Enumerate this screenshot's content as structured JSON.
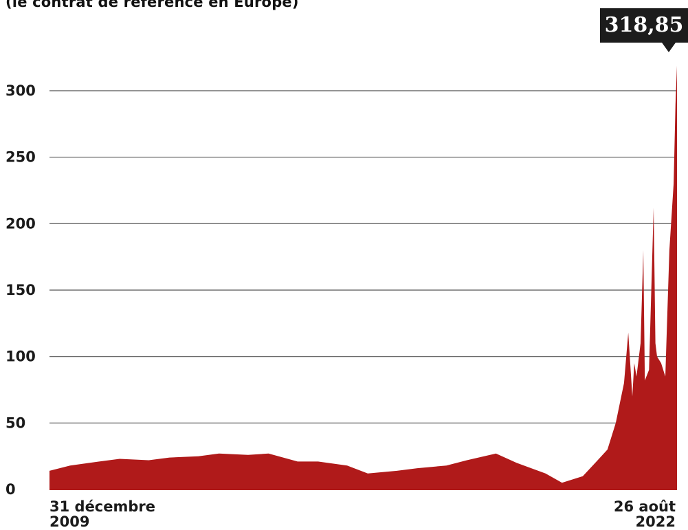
{
  "subtitle": "(le contrat de référence en Europe)",
  "callout": "318,85",
  "colors": {
    "area": "#b01a1a",
    "grid": "#555555"
  },
  "chart_data": {
    "type": "area",
    "subtitle": "(le contrat de référence en Europe)",
    "x_start_label": [
      "31 décembre",
      "2009"
    ],
    "x_end_label": [
      "26 août",
      "2022"
    ],
    "x": [
      "2009-12-31",
      "2010-06-01",
      "2011-01-01",
      "2011-06-01",
      "2012-01-01",
      "2012-06-01",
      "2013-01-01",
      "2013-06-01",
      "2014-01-01",
      "2014-06-01",
      "2015-01-01",
      "2015-06-01",
      "2016-01-01",
      "2016-06-01",
      "2017-01-01",
      "2017-06-01",
      "2018-01-01",
      "2018-06-01",
      "2019-01-01",
      "2019-06-01",
      "2020-01-01",
      "2020-05-01",
      "2020-10-01",
      "2021-01-01",
      "2021-04-01",
      "2021-06-01",
      "2021-08-01",
      "2021-09-01",
      "2021-10-01",
      "2021-10-15",
      "2021-11-01",
      "2021-12-01",
      "2021-12-21",
      "2022-01-01",
      "2022-02-01",
      "2022-03-07",
      "2022-03-20",
      "2022-04-01",
      "2022-05-01",
      "2022-06-01",
      "2022-07-01",
      "2022-08-01",
      "2022-08-15",
      "2022-08-26"
    ],
    "y": [
      14,
      18,
      21,
      23,
      22,
      24,
      25,
      27,
      26,
      27,
      21,
      21,
      18,
      12,
      14,
      16,
      18,
      22,
      27,
      20,
      12,
      5,
      10,
      20,
      30,
      50,
      80,
      118,
      70,
      95,
      85,
      110,
      180,
      82,
      90,
      212,
      110,
      100,
      95,
      85,
      180,
      230,
      290,
      318.85
    ],
    "ylim": [
      0,
      320
    ],
    "yticks": [
      0,
      50,
      100,
      150,
      200,
      250,
      300
    ],
    "grid": true,
    "max_label": "318,85"
  }
}
